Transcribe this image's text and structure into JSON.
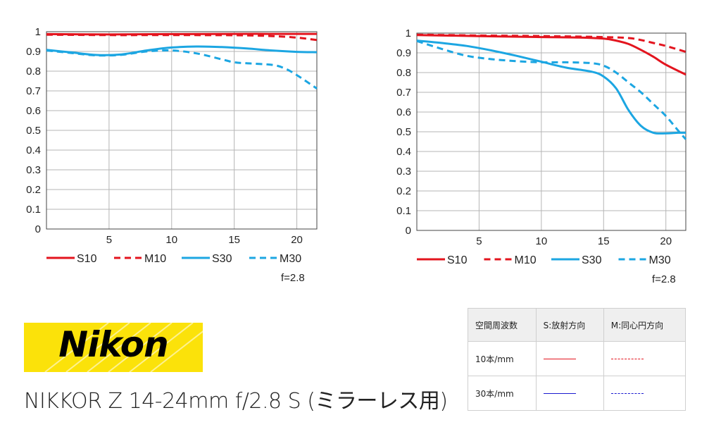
{
  "chart_data": [
    {
      "type": "line",
      "xlim": [
        0,
        21.6
      ],
      "ylim": [
        0,
        1
      ],
      "x_ticks": [
        "5",
        "10",
        "15",
        "20"
      ],
      "y_ticks": [
        "0",
        "0.1",
        "0.2",
        "0.3",
        "0.4",
        "0.5",
        "0.6",
        "0.7",
        "0.8",
        "0.9",
        "1"
      ],
      "grid": true,
      "legend_placement": "bottom",
      "aperture_label": "f=2.8",
      "series": [
        {
          "name": "S10",
          "color": "#e3141e",
          "dash": false,
          "x": [
            0,
            5,
            10,
            15,
            20,
            21.6
          ],
          "y": [
            0.988,
            0.986,
            0.988,
            0.989,
            0.989,
            0.989
          ]
        },
        {
          "name": "M10",
          "color": "#e3141e",
          "dash": true,
          "x": [
            0,
            5,
            10,
            15,
            18,
            20,
            21.6
          ],
          "y": [
            0.985,
            0.983,
            0.983,
            0.982,
            0.978,
            0.97,
            0.958
          ]
        },
        {
          "name": "S30",
          "color": "#1ca6e2",
          "dash": false,
          "x": [
            0,
            2,
            4,
            6,
            8,
            10,
            12,
            14,
            16,
            18,
            20,
            21.6
          ],
          "y": [
            0.908,
            0.895,
            0.882,
            0.885,
            0.905,
            0.92,
            0.925,
            0.922,
            0.915,
            0.905,
            0.898,
            0.896
          ]
        },
        {
          "name": "M30",
          "color": "#1ca6e2",
          "dash": true,
          "x": [
            0,
            2,
            4,
            6,
            8,
            10,
            12,
            14,
            15,
            16,
            18,
            19,
            20,
            21.6
          ],
          "y": [
            0.905,
            0.892,
            0.88,
            0.883,
            0.9,
            0.905,
            0.89,
            0.86,
            0.845,
            0.84,
            0.832,
            0.815,
            0.78,
            0.712
          ]
        }
      ]
    },
    {
      "type": "line",
      "xlim": [
        0,
        21.6
      ],
      "ylim": [
        0,
        1
      ],
      "x_ticks": [
        "5",
        "10",
        "15",
        "20"
      ],
      "y_ticks": [
        "0",
        "0.1",
        "0.2",
        "0.3",
        "0.4",
        "0.5",
        "0.6",
        "0.7",
        "0.8",
        "0.9",
        "1"
      ],
      "grid": true,
      "legend_placement": "bottom",
      "aperture_label": "f=2.8",
      "series": [
        {
          "name": "S10",
          "color": "#e3141e",
          "dash": false,
          "x": [
            0,
            5,
            10,
            13,
            15,
            16,
            17,
            18,
            19,
            20,
            21.6
          ],
          "y": [
            0.99,
            0.985,
            0.98,
            0.978,
            0.972,
            0.962,
            0.945,
            0.915,
            0.88,
            0.84,
            0.79
          ]
        },
        {
          "name": "M10",
          "color": "#e3141e",
          "dash": true,
          "x": [
            0,
            5,
            10,
            15,
            17,
            18,
            19,
            20,
            21.6
          ],
          "y": [
            0.992,
            0.988,
            0.985,
            0.98,
            0.975,
            0.965,
            0.95,
            0.935,
            0.905
          ]
        },
        {
          "name": "S30",
          "color": "#1ca6e2",
          "dash": false,
          "x": [
            0,
            2,
            4,
            6,
            8,
            10,
            12,
            14,
            15,
            16,
            17,
            18,
            19,
            20,
            21,
            21.6
          ],
          "y": [
            0.962,
            0.95,
            0.935,
            0.912,
            0.885,
            0.855,
            0.825,
            0.805,
            0.78,
            0.72,
            0.61,
            0.53,
            0.495,
            0.492,
            0.495,
            0.495
          ]
        },
        {
          "name": "M30",
          "color": "#1ca6e2",
          "dash": true,
          "x": [
            0,
            2,
            4,
            6,
            8,
            10,
            12,
            14,
            15,
            16,
            17,
            18,
            19,
            20,
            21,
            21.6
          ],
          "y": [
            0.96,
            0.92,
            0.885,
            0.868,
            0.858,
            0.852,
            0.852,
            0.848,
            0.835,
            0.8,
            0.75,
            0.7,
            0.64,
            0.58,
            0.505,
            0.462
          ]
        }
      ]
    }
  ],
  "brand": {
    "logo_text": "Nikon",
    "bg_color": "#fbe20a"
  },
  "lens_name": "NIKKOR Z 14-24mm f/2.8 S (ミラーレス用)",
  "legend_table": {
    "header": [
      "空間周波数",
      "S:放射方向",
      "M:同心円方向"
    ],
    "rows": [
      {
        "label": "10本/mm",
        "s_color": "#e3141e",
        "m_color": "#e3141e"
      },
      {
        "label": "30本/mm",
        "s_color": "#1a1ad0",
        "m_color": "#1a1ad0"
      }
    ]
  }
}
